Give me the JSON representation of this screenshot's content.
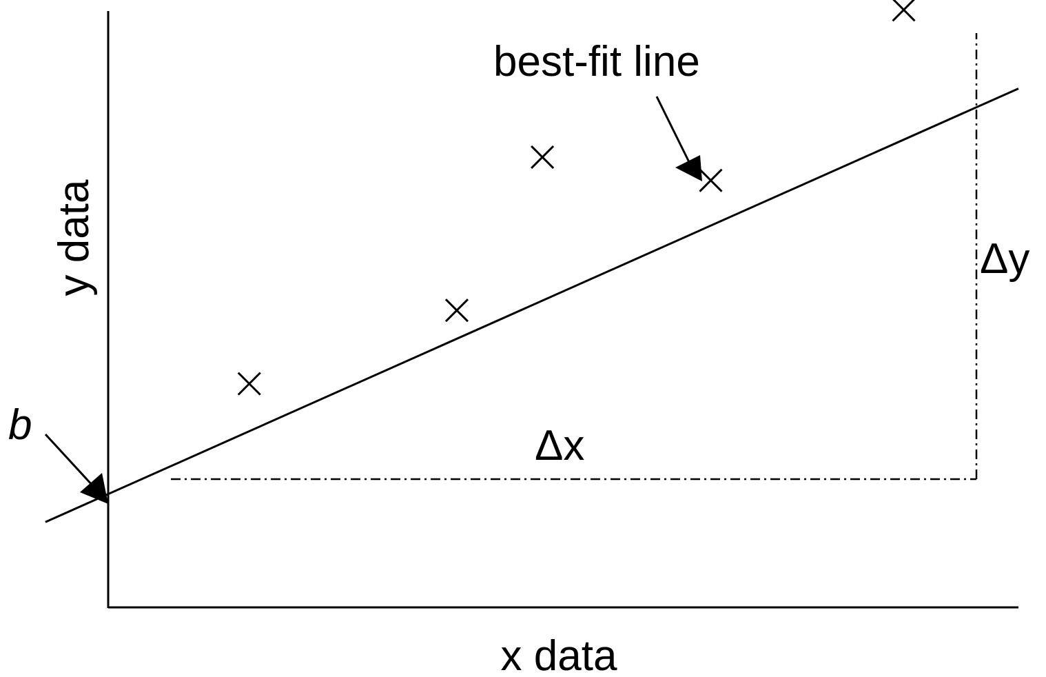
{
  "labels": {
    "x_axis": "x data",
    "y_axis": "y data",
    "best_fit": "best-fit line",
    "intercept": "b",
    "delta_x": "Δx",
    "delta_y": "Δy"
  },
  "points": [
    {
      "x": 0.155,
      "y": 0.375
    },
    {
      "x": 0.383,
      "y": 0.498
    },
    {
      "x": 0.477,
      "y": 0.755
    },
    {
      "x": 0.662,
      "y": 0.716
    },
    {
      "x": 0.874,
      "y": 1.002
    }
  ],
  "best_fit": {
    "slope": 0.68,
    "intercept": 0.19
  },
  "colors": {
    "ink": "#000000",
    "background": "#ffffff"
  }
}
